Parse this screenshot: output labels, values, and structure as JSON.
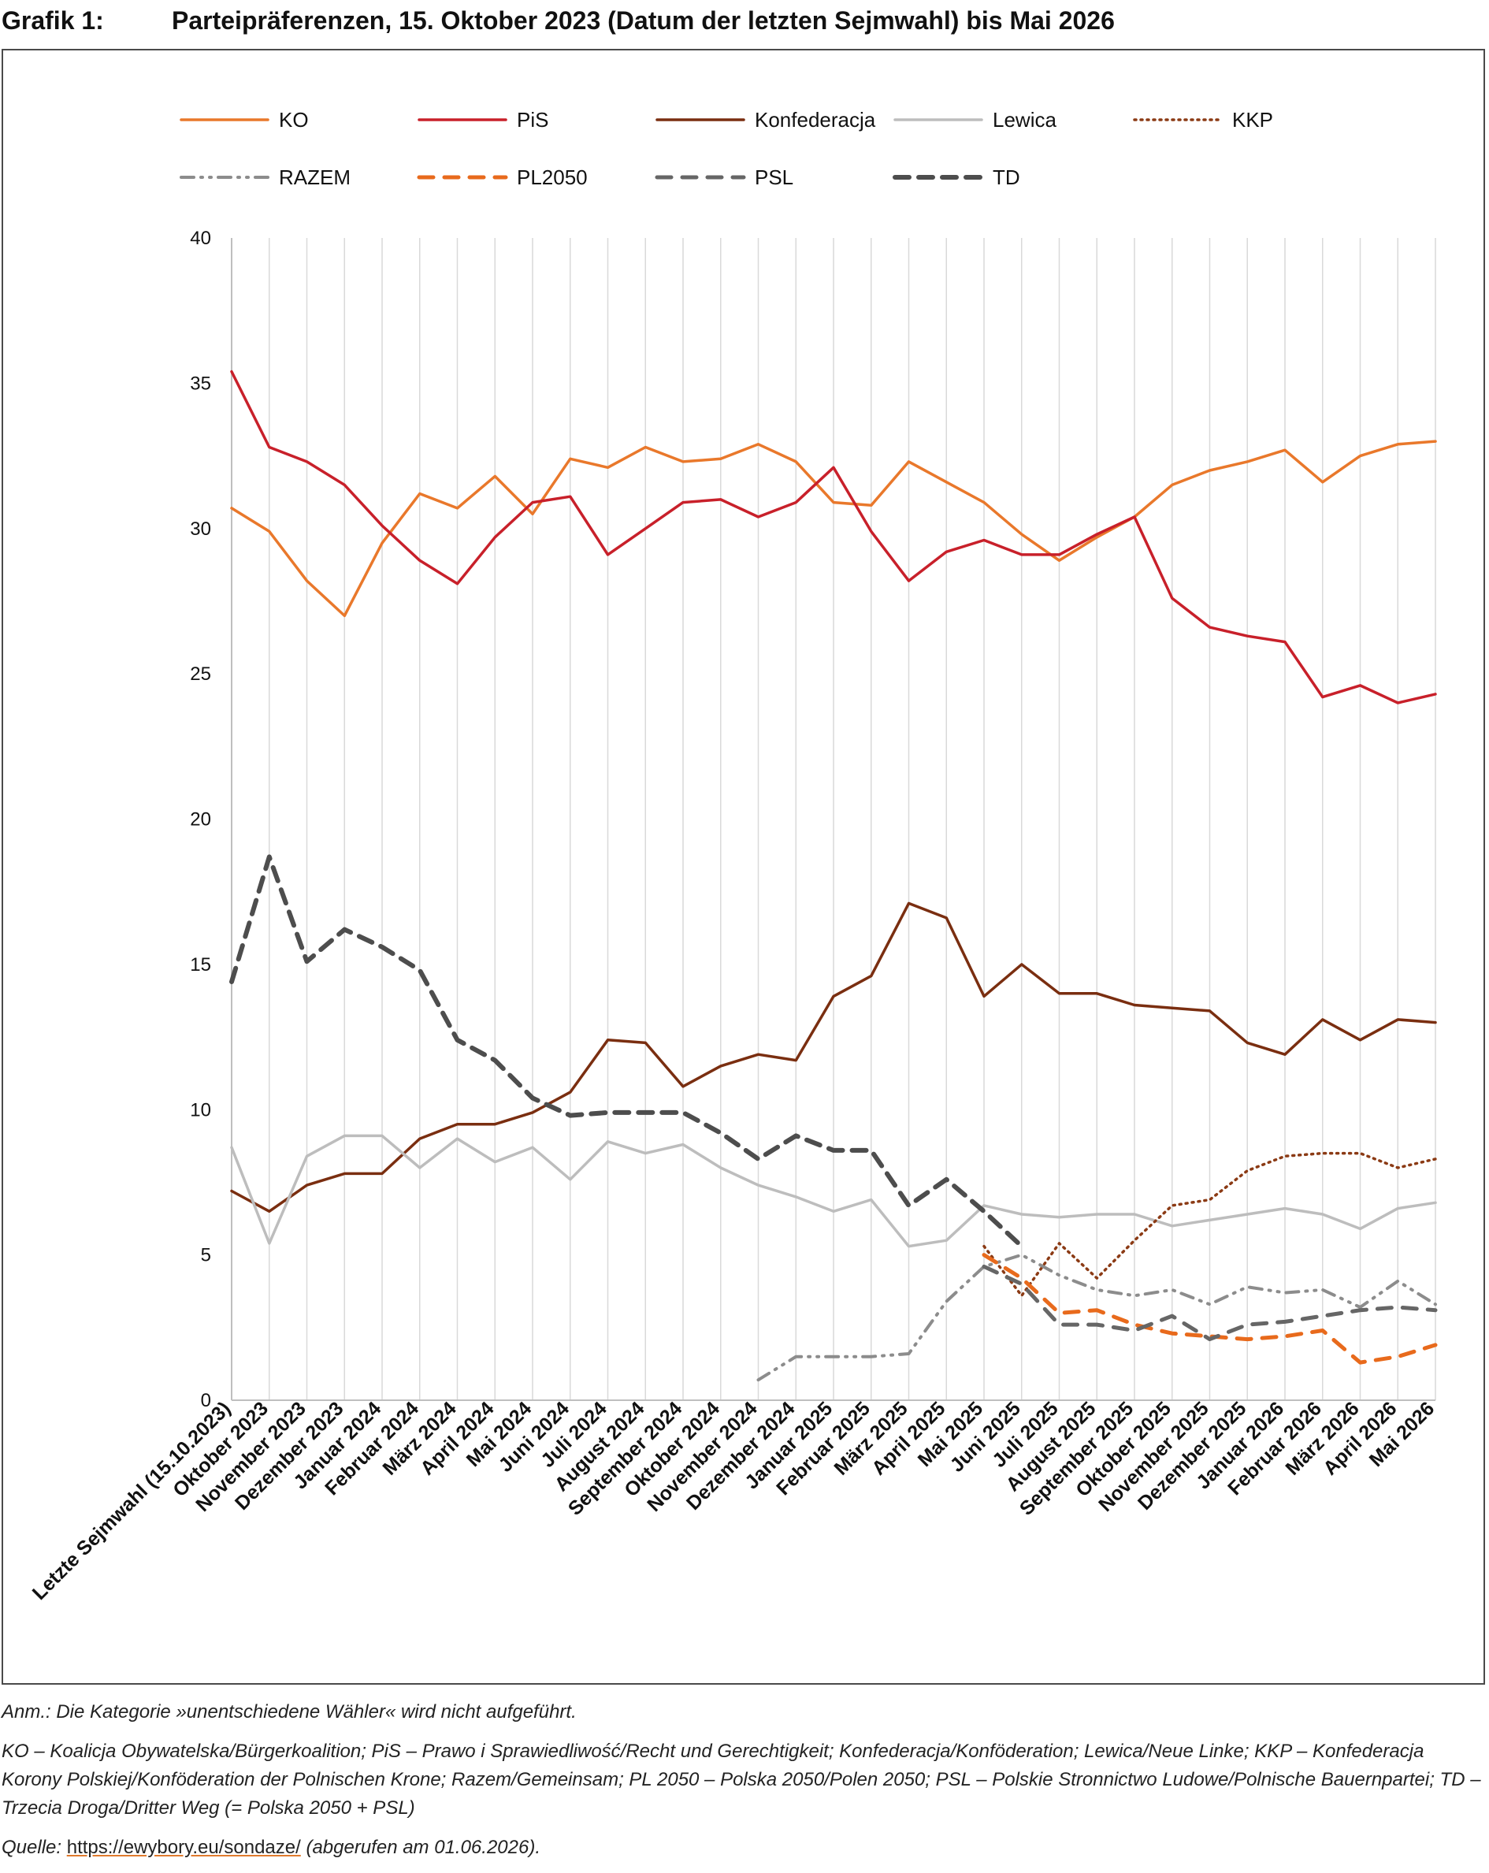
{
  "header": {
    "label": "Grafik 1:",
    "title": "Parteipräferenzen, 15. Oktober 2023 (Datum der letzten Sejmwahl) bis Mai 2026"
  },
  "notes": {
    "anm": "Anm.: Die Kategorie »unentschiedene Wähler« wird nicht aufgeführt.",
    "abbrev": "KO – Koalicja Obywatelska/Bürgerkoalition; PiS – Prawo i Sprawiedliwość/Recht und Gerechtigkeit; Konfederacja/Konföderation; Lewica/Neue Linke; KKP – Konfederacja Korony Polskiej/Konföderation der Polnischen Krone; Razem/Gemeinsam; PL 2050 – Polska 2050/Polen 2050; PSL – Polskie Stronnictwo Ludowe/Polnische Bauernpartei; TD – Trzecia Droga/Dritter Weg (= Polska 2050 + PSL)",
    "source_label": "Quelle:",
    "source_url": "https://ewybory.eu/sondaze/",
    "source_suffix": "(abgerufen am 01.06.2026)."
  },
  "chart_data": {
    "type": "line",
    "title": "",
    "xlabel": "",
    "ylabel": "",
    "ylim": [
      0,
      40
    ],
    "yticks": [
      0,
      5,
      10,
      15,
      20,
      25,
      30,
      35,
      40
    ],
    "grid": "vertical",
    "legend_position": "top",
    "categories": [
      "Letzte Sejmwahl (15.10.2023)",
      "Oktober 2023",
      "November 2023",
      "Dezember 2023",
      "Januar 2024",
      "Februar 2024",
      "März 2024",
      "April 2024",
      "Mai 2024",
      "Juni 2024",
      "Juli 2024",
      "August 2024",
      "September 2024",
      "Oktober 2024",
      "November 2024",
      "Dezember 2024",
      "Januar 2025",
      "Februar 2025",
      "März 2025",
      "April 2025",
      "Mai 2025",
      "Juni 2025",
      "Juli 2025",
      "August 2025",
      "September 2025",
      "Oktober 2025",
      "November 2025",
      "Dezember 2025",
      "Januar 2026",
      "Februar 2026",
      "März 2026",
      "April 2026",
      "Mai 2026"
    ],
    "series": [
      {
        "name": "KO",
        "color": "#e9782b",
        "style": "solid",
        "values": [
          30.7,
          29.9,
          28.2,
          27.0,
          29.5,
          31.2,
          30.7,
          31.8,
          30.5,
          32.4,
          32.1,
          32.8,
          32.3,
          32.4,
          32.9,
          32.3,
          30.9,
          30.8,
          32.3,
          31.6,
          30.9,
          29.8,
          28.9,
          29.7,
          30.4,
          31.5,
          32.0,
          32.3,
          32.7,
          31.6,
          32.5,
          32.9,
          33.0
        ]
      },
      {
        "name": "PiS",
        "color": "#c8202a",
        "style": "solid",
        "values": [
          35.4,
          32.8,
          32.3,
          31.5,
          30.1,
          28.9,
          28.1,
          29.7,
          30.9,
          31.1,
          29.1,
          30.0,
          30.9,
          31.0,
          30.4,
          30.9,
          32.1,
          29.9,
          28.2,
          29.2,
          29.6,
          29.1,
          29.1,
          29.8,
          30.4,
          27.6,
          26.6,
          26.3,
          26.1,
          24.2,
          24.6,
          24.0,
          24.3
        ]
      },
      {
        "name": "Konfederacja",
        "color": "#7a2e10",
        "style": "solid",
        "values": [
          7.2,
          6.5,
          7.4,
          7.8,
          7.8,
          9.0,
          9.5,
          9.5,
          9.9,
          10.6,
          12.4,
          12.3,
          10.8,
          11.5,
          11.9,
          11.7,
          13.9,
          14.6,
          17.1,
          16.6,
          13.9,
          15.0,
          14.0,
          14.0,
          13.6,
          13.5,
          13.4,
          12.3,
          11.9,
          13.1,
          12.4,
          13.1,
          13.0
        ]
      },
      {
        "name": "Lewica",
        "color": "#bdbdbd",
        "style": "solid",
        "values": [
          8.7,
          5.4,
          8.4,
          9.1,
          9.1,
          8.0,
          9.0,
          8.2,
          8.7,
          7.6,
          8.9,
          8.5,
          8.8,
          8.0,
          7.4,
          7.0,
          6.5,
          6.9,
          5.3,
          5.5,
          6.7,
          6.4,
          6.3,
          6.4,
          6.4,
          6.0,
          6.2,
          6.4,
          6.6,
          6.4,
          5.9,
          6.6,
          6.8
        ]
      },
      {
        "name": "KKP",
        "color": "#8b3a14",
        "style": "dotted",
        "values": [
          null,
          null,
          null,
          null,
          null,
          null,
          null,
          null,
          null,
          null,
          null,
          null,
          null,
          null,
          null,
          null,
          null,
          null,
          null,
          null,
          5.3,
          3.6,
          5.4,
          4.2,
          5.5,
          6.7,
          6.9,
          7.9,
          8.4,
          8.5,
          8.5,
          8.0,
          8.3
        ]
      },
      {
        "name": "RAZEM",
        "color": "#8c8c8c",
        "style": "dashdotdot",
        "values": [
          null,
          null,
          null,
          null,
          null,
          null,
          null,
          null,
          null,
          null,
          null,
          null,
          null,
          null,
          0.7,
          1.5,
          1.5,
          1.5,
          1.6,
          3.4,
          4.6,
          5.0,
          4.3,
          3.8,
          3.6,
          3.8,
          3.3,
          3.9,
          3.7,
          3.8,
          3.2,
          4.1,
          3.3
        ]
      },
      {
        "name": "PL2050",
        "color": "#e86a1c",
        "style": "dashed",
        "values": [
          null,
          null,
          null,
          null,
          null,
          null,
          null,
          null,
          null,
          null,
          null,
          null,
          null,
          null,
          null,
          null,
          null,
          null,
          null,
          null,
          5.0,
          4.2,
          3.0,
          3.1,
          2.6,
          2.3,
          2.2,
          2.1,
          2.2,
          2.4,
          1.3,
          1.5,
          1.9
        ]
      },
      {
        "name": "PSL",
        "color": "#666666",
        "style": "dashed",
        "values": [
          null,
          null,
          null,
          null,
          null,
          null,
          null,
          null,
          null,
          null,
          null,
          null,
          null,
          null,
          null,
          null,
          null,
          null,
          null,
          null,
          4.6,
          4.0,
          2.6,
          2.6,
          2.4,
          2.9,
          2.1,
          2.6,
          2.7,
          2.9,
          3.1,
          3.2,
          3.1
        ]
      },
      {
        "name": "TD",
        "color": "#4d4d4d",
        "style": "dashed-bold",
        "values": [
          14.4,
          18.7,
          15.1,
          16.2,
          15.6,
          14.8,
          12.4,
          11.7,
          10.4,
          9.8,
          9.9,
          9.9,
          9.9,
          9.2,
          8.3,
          9.1,
          8.6,
          8.6,
          6.7,
          7.6,
          6.5,
          5.3,
          null,
          null,
          null,
          null,
          null,
          null,
          null,
          null,
          null,
          null,
          null
        ]
      }
    ]
  }
}
